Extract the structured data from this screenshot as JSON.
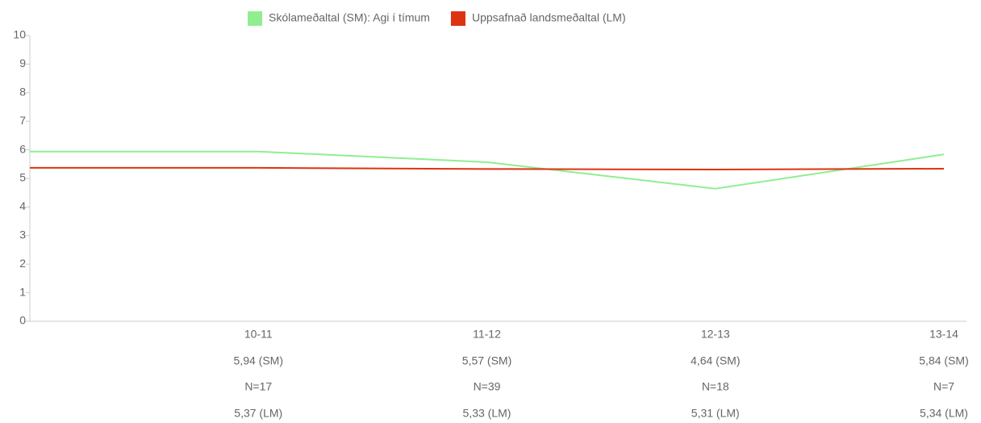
{
  "chart_data": {
    "type": "line",
    "categories": [
      "10-11",
      "11-12",
      "12-13",
      "13-14"
    ],
    "series": [
      {
        "name": "Skólameðaltal (SM): Agi í tímum",
        "color": "#90ee90",
        "values": [
          5.94,
          5.57,
          4.64,
          5.84
        ],
        "value_labels": [
          "5,94 (SM)",
          "5,57 (SM)",
          "4,64 (SM)",
          "5,84 (SM)"
        ]
      },
      {
        "name": "Uppsafnað landsmeðaltal (LM)",
        "color": "#dd3311",
        "values": [
          5.37,
          5.33,
          5.31,
          5.34
        ],
        "value_labels": [
          "5,37 (LM)",
          "5,33 (LM)",
          "5,31 (LM)",
          "5,34 (LM)"
        ]
      }
    ],
    "counts": [
      "N=17",
      "N=39",
      "N=18",
      "N=7"
    ],
    "ylim": [
      0,
      10
    ],
    "yticks": [
      0,
      1,
      2,
      3,
      4,
      5,
      6,
      7,
      8,
      9,
      10
    ],
    "legend": "top"
  }
}
